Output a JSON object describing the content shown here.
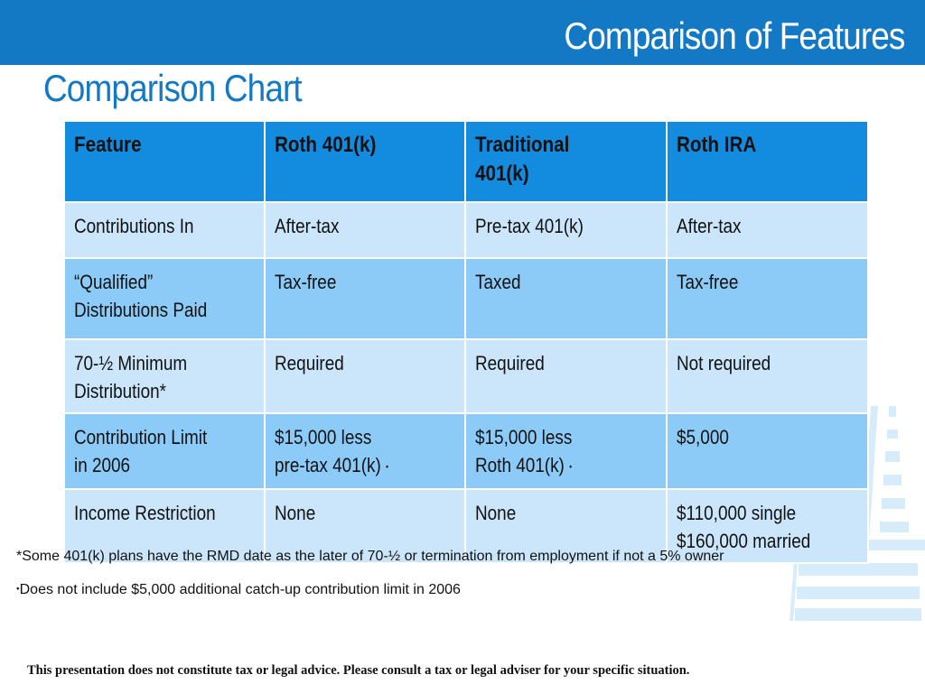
{
  "header": {
    "title": "Comparison of Features"
  },
  "subtitle": "Comparison Chart",
  "colors": {
    "header_bar": "#1479c4",
    "table_header": "#138ce0",
    "row_light": "#cbe6fb",
    "row_mid": "#8ccbf8"
  },
  "table": {
    "headers": [
      {
        "lines": [
          "Feature"
        ]
      },
      {
        "lines": [
          "Roth 401(k)"
        ]
      },
      {
        "lines": [
          "Traditional",
          "401(k)"
        ]
      },
      {
        "lines": [
          "Roth IRA"
        ]
      }
    ],
    "rows": [
      {
        "cells": [
          {
            "lines": [
              "Contributions In"
            ]
          },
          {
            "lines": [
              "After-tax"
            ]
          },
          {
            "lines": [
              "Pre-tax 401(k)"
            ]
          },
          {
            "lines": [
              "After-tax"
            ]
          }
        ]
      },
      {
        "cells": [
          {
            "lines": [
              "“Qualified”",
              "Distributions Paid"
            ]
          },
          {
            "lines": [
              "Tax-free"
            ]
          },
          {
            "lines": [
              "Taxed"
            ]
          },
          {
            "lines": [
              "Tax-free"
            ]
          }
        ]
      },
      {
        "cells": [
          {
            "lines": [
              "70-½ Minimum",
              "Distribution*"
            ]
          },
          {
            "lines": [
              "Required"
            ]
          },
          {
            "lines": [
              "Required"
            ]
          },
          {
            "lines": [
              "Not required"
            ]
          }
        ]
      },
      {
        "cells": [
          {
            "lines": [
              "Contribution Limit",
              "in 2006"
            ]
          },
          {
            "lines": [
              "$15,000 less",
              "pre-tax 401(k)"
            ]
          },
          {
            "lines": [
              "$15,000 less",
              "Roth 401(k)"
            ]
          },
          {
            "lines": [
              "$5,000"
            ]
          }
        ]
      },
      {
        "cells": [
          {
            "lines": [
              "Income Restriction"
            ]
          },
          {
            "lines": [
              "None"
            ]
          },
          {
            "lines": [
              "None"
            ]
          },
          {
            "lines": [
              "$110,000 single",
              "$160,000 married"
            ]
          }
        ]
      }
    ]
  },
  "notes": {
    "rmd": "*Some 401(k) plans have the RMD date as the later of 70-½ or termination from employment if not a 5% owner",
    "diamond_symbol": "⬩",
    "catchup": "Does not include $5,000 additional catch-up contribution limit in 2006"
  },
  "disclaimer": "This presentation does not constitute tax or legal advice.  Please consult a tax or legal adviser for your specific situation."
}
